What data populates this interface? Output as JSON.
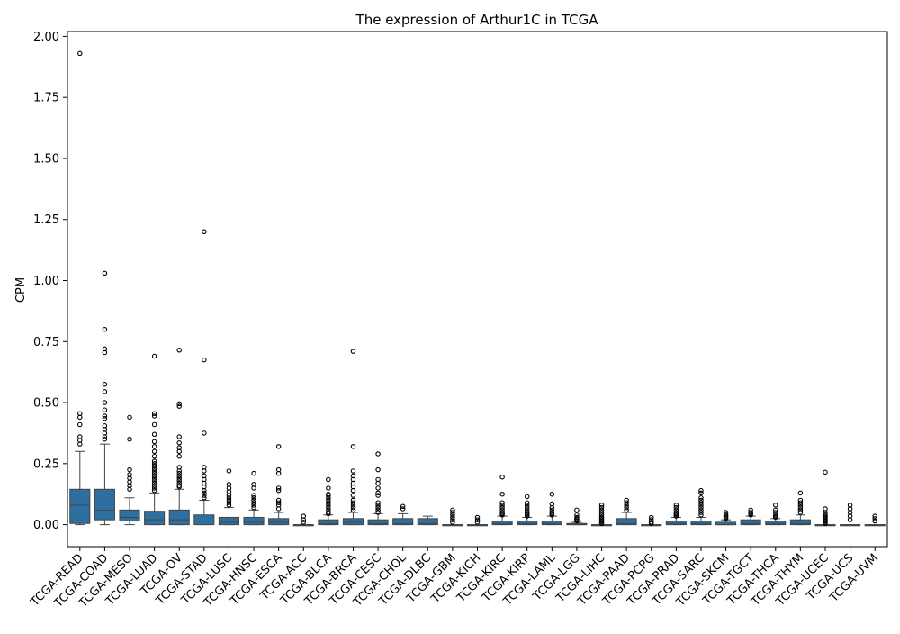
{
  "chart_data": {
    "type": "box",
    "title": "The expression of Arthur1C in TCGA",
    "xlabel": "",
    "ylabel": "CPM",
    "ylim": [
      -0.09,
      2.02
    ],
    "yticks": [
      0.0,
      0.25,
      0.5,
      0.75,
      1.0,
      1.25,
      1.5,
      1.75,
      2.0
    ],
    "ytick_labels": [
      "0.00",
      "0.25",
      "0.50",
      "0.75",
      "1.00",
      "1.25",
      "1.50",
      "1.75",
      "2.00"
    ],
    "grid": false,
    "box_color": "#2f6f9f",
    "categories": [
      "TCGA-READ",
      "TCGA-COAD",
      "TCGA-MESO",
      "TCGA-LUAD",
      "TCGA-OV",
      "TCGA-STAD",
      "TCGA-LUSC",
      "TCGA-HNSC",
      "TCGA-ESCA",
      "TCGA-ACC",
      "TCGA-BLCA",
      "TCGA-BRCA",
      "TCGA-CESC",
      "TCGA-CHOL",
      "TCGA-DLBC",
      "TCGA-GBM",
      "TCGA-KICH",
      "TCGA-KIRC",
      "TCGA-KIRP",
      "TCGA-LAML",
      "TCGA-LGG",
      "TCGA-LIHC",
      "TCGA-PAAD",
      "TCGA-PCPG",
      "TCGA-PRAD",
      "TCGA-SARC",
      "TCGA-SKCM",
      "TCGA-TGCT",
      "TCGA-THCA",
      "TCGA-THYM",
      "TCGA-UCEC",
      "TCGA-UCS",
      "TCGA-UVM"
    ],
    "boxes": [
      {
        "q1": 0.005,
        "median": 0.08,
        "q3": 0.145,
        "whisker_low": 0.0,
        "whisker_high": 0.3,
        "outliers": [
          1.93,
          0.455,
          0.44,
          0.41,
          0.36,
          0.345,
          0.33
        ]
      },
      {
        "q1": 0.02,
        "median": 0.06,
        "q3": 0.145,
        "whisker_low": 0.0,
        "whisker_high": 0.33,
        "outliers": [
          1.03,
          0.8,
          0.72,
          0.705,
          0.575,
          0.545,
          0.5,
          0.47,
          0.445,
          0.435,
          0.405,
          0.39,
          0.375,
          0.36,
          0.35
        ]
      },
      {
        "q1": 0.015,
        "median": 0.03,
        "q3": 0.06,
        "whisker_low": 0.0,
        "whisker_high": 0.11,
        "outliers": [
          0.44,
          0.35,
          0.225,
          0.205,
          0.19,
          0.175,
          0.16,
          0.145
        ]
      },
      {
        "q1": 0.0,
        "median": 0.02,
        "q3": 0.055,
        "whisker_low": 0.0,
        "whisker_high": 0.13,
        "outliers": [
          0.69,
          0.455,
          0.445,
          0.41,
          0.37,
          0.34,
          0.32,
          0.3,
          0.28,
          0.26,
          0.25,
          0.24,
          0.23,
          0.22,
          0.21,
          0.2,
          0.19,
          0.18,
          0.17,
          0.16,
          0.15,
          0.14
        ]
      },
      {
        "q1": 0.0,
        "median": 0.02,
        "q3": 0.06,
        "whisker_low": 0.0,
        "whisker_high": 0.145,
        "outliers": [
          0.715,
          0.495,
          0.485,
          0.36,
          0.335,
          0.315,
          0.3,
          0.28,
          0.235,
          0.22,
          0.21,
          0.2,
          0.19,
          0.18,
          0.17,
          0.16,
          0.155
        ]
      },
      {
        "q1": 0.0,
        "median": 0.015,
        "q3": 0.04,
        "whisker_low": 0.0,
        "whisker_high": 0.1,
        "outliers": [
          1.2,
          0.675,
          0.375,
          0.235,
          0.22,
          0.2,
          0.185,
          0.17,
          0.155,
          0.14,
          0.13,
          0.12,
          0.11
        ]
      },
      {
        "q1": 0.0,
        "median": 0.01,
        "q3": 0.03,
        "whisker_low": 0.0,
        "whisker_high": 0.07,
        "outliers": [
          0.22,
          0.165,
          0.15,
          0.135,
          0.12,
          0.11,
          0.1,
          0.09,
          0.08
        ]
      },
      {
        "q1": 0.0,
        "median": 0.01,
        "q3": 0.03,
        "whisker_low": 0.0,
        "whisker_high": 0.06,
        "outliers": [
          0.21,
          0.165,
          0.15,
          0.12,
          0.11,
          0.1,
          0.09,
          0.08,
          0.07
        ]
      },
      {
        "q1": 0.0,
        "median": 0.01,
        "q3": 0.025,
        "whisker_low": 0.0,
        "whisker_high": 0.05,
        "outliers": [
          0.32,
          0.225,
          0.21,
          0.15,
          0.14,
          0.1,
          0.09,
          0.08,
          0.065
        ]
      },
      {
        "q1": 0.0,
        "median": 0.0,
        "q3": 0.0,
        "whisker_low": 0.0,
        "whisker_high": 0.0,
        "outliers": [
          0.035,
          0.02,
          0.01
        ]
      },
      {
        "q1": 0.0,
        "median": 0.005,
        "q3": 0.02,
        "whisker_low": 0.0,
        "whisker_high": 0.04,
        "outliers": [
          0.185,
          0.15,
          0.125,
          0.12,
          0.11,
          0.1,
          0.09,
          0.08,
          0.07,
          0.06,
          0.05,
          0.045
        ]
      },
      {
        "q1": 0.0,
        "median": 0.01,
        "q3": 0.025,
        "whisker_low": 0.0,
        "whisker_high": 0.05,
        "outliers": [
          0.71,
          0.32,
          0.22,
          0.2,
          0.185,
          0.17,
          0.155,
          0.14,
          0.12,
          0.1,
          0.09,
          0.08,
          0.07,
          0.06
        ]
      },
      {
        "q1": 0.0,
        "median": 0.005,
        "q3": 0.02,
        "whisker_low": 0.0,
        "whisker_high": 0.045,
        "outliers": [
          0.29,
          0.225,
          0.185,
          0.17,
          0.15,
          0.13,
          0.12,
          0.09,
          0.08,
          0.07,
          0.06,
          0.05
        ]
      },
      {
        "q1": 0.0,
        "median": 0.005,
        "q3": 0.025,
        "whisker_low": 0.0,
        "whisker_high": 0.045,
        "outliers": [
          0.075,
          0.065
        ]
      },
      {
        "q1": 0.0,
        "median": 0.005,
        "q3": 0.025,
        "whisker_low": 0.0,
        "whisker_high": 0.035,
        "outliers": []
      },
      {
        "q1": 0.0,
        "median": 0.0,
        "q3": 0.0,
        "whisker_low": 0.0,
        "whisker_high": 0.0,
        "outliers": [
          0.06,
          0.05,
          0.04,
          0.03,
          0.02,
          0.01
        ]
      },
      {
        "q1": 0.0,
        "median": 0.0,
        "q3": 0.0,
        "whisker_low": 0.0,
        "whisker_high": 0.0,
        "outliers": [
          0.03,
          0.02,
          0.01
        ]
      },
      {
        "q1": 0.0,
        "median": 0.005,
        "q3": 0.015,
        "whisker_low": 0.0,
        "whisker_high": 0.035,
        "outliers": [
          0.195,
          0.125,
          0.09,
          0.08,
          0.07,
          0.06,
          0.05,
          0.045,
          0.04
        ]
      },
      {
        "q1": 0.0,
        "median": 0.005,
        "q3": 0.015,
        "whisker_low": 0.0,
        "whisker_high": 0.03,
        "outliers": [
          0.115,
          0.09,
          0.08,
          0.07,
          0.06,
          0.05,
          0.045,
          0.04,
          0.035
        ]
      },
      {
        "q1": 0.0,
        "median": 0.005,
        "q3": 0.015,
        "whisker_low": 0.0,
        "whisker_high": 0.035,
        "outliers": [
          0.125,
          0.085,
          0.07,
          0.06,
          0.05,
          0.045,
          0.04
        ]
      },
      {
        "q1": 0.0,
        "median": 0.0,
        "q3": 0.005,
        "whisker_low": 0.0,
        "whisker_high": 0.01,
        "outliers": [
          0.06,
          0.04,
          0.03,
          0.025,
          0.02,
          0.015
        ]
      },
      {
        "q1": 0.0,
        "median": 0.0,
        "q3": 0.0,
        "whisker_low": 0.0,
        "whisker_high": 0.0,
        "outliers": [
          0.08,
          0.07,
          0.06,
          0.05,
          0.04,
          0.03,
          0.025,
          0.02,
          0.015,
          0.01,
          0.005
        ]
      },
      {
        "q1": 0.0,
        "median": 0.005,
        "q3": 0.025,
        "whisker_low": 0.0,
        "whisker_high": 0.05,
        "outliers": [
          0.1,
          0.09,
          0.08,
          0.07,
          0.06
        ]
      },
      {
        "q1": 0.0,
        "median": 0.0,
        "q3": 0.0,
        "whisker_low": 0.0,
        "whisker_high": 0.0,
        "outliers": [
          0.03,
          0.02,
          0.01,
          0.005
        ]
      },
      {
        "q1": 0.0,
        "median": 0.005,
        "q3": 0.015,
        "whisker_low": 0.0,
        "whisker_high": 0.03,
        "outliers": [
          0.08,
          0.07,
          0.06,
          0.05,
          0.045,
          0.04,
          0.035
        ]
      },
      {
        "q1": 0.0,
        "median": 0.005,
        "q3": 0.015,
        "whisker_low": 0.0,
        "whisker_high": 0.03,
        "outliers": [
          0.14,
          0.13,
          0.11,
          0.1,
          0.09,
          0.08,
          0.07,
          0.06,
          0.05,
          0.04
        ]
      },
      {
        "q1": 0.0,
        "median": 0.0,
        "q3": 0.01,
        "whisker_low": 0.0,
        "whisker_high": 0.02,
        "outliers": [
          0.05,
          0.04,
          0.035,
          0.03,
          0.025
        ]
      },
      {
        "q1": 0.0,
        "median": 0.005,
        "q3": 0.02,
        "whisker_low": 0.0,
        "whisker_high": 0.035,
        "outliers": [
          0.06,
          0.05,
          0.045,
          0.04
        ]
      },
      {
        "q1": 0.0,
        "median": 0.005,
        "q3": 0.015,
        "whisker_low": 0.0,
        "whisker_high": 0.025,
        "outliers": [
          0.08,
          0.06,
          0.05,
          0.04,
          0.035,
          0.03
        ]
      },
      {
        "q1": 0.0,
        "median": 0.005,
        "q3": 0.02,
        "whisker_low": 0.0,
        "whisker_high": 0.04,
        "outliers": [
          0.13,
          0.1,
          0.09,
          0.08,
          0.07,
          0.06,
          0.05
        ]
      },
      {
        "q1": 0.0,
        "median": 0.0,
        "q3": 0.0,
        "whisker_low": 0.0,
        "whisker_high": 0.0,
        "outliers": [
          0.215,
          0.065,
          0.05,
          0.04,
          0.035,
          0.03,
          0.025,
          0.02,
          0.015,
          0.01,
          0.005
        ]
      },
      {
        "q1": 0.0,
        "median": 0.0,
        "q3": 0.0,
        "whisker_low": 0.0,
        "whisker_high": 0.0,
        "outliers": [
          0.08,
          0.065,
          0.05,
          0.035,
          0.02
        ]
      },
      {
        "q1": 0.0,
        "median": 0.0,
        "q3": 0.0,
        "whisker_low": 0.0,
        "whisker_high": 0.0,
        "outliers": [
          0.035,
          0.025,
          0.015
        ]
      }
    ]
  }
}
